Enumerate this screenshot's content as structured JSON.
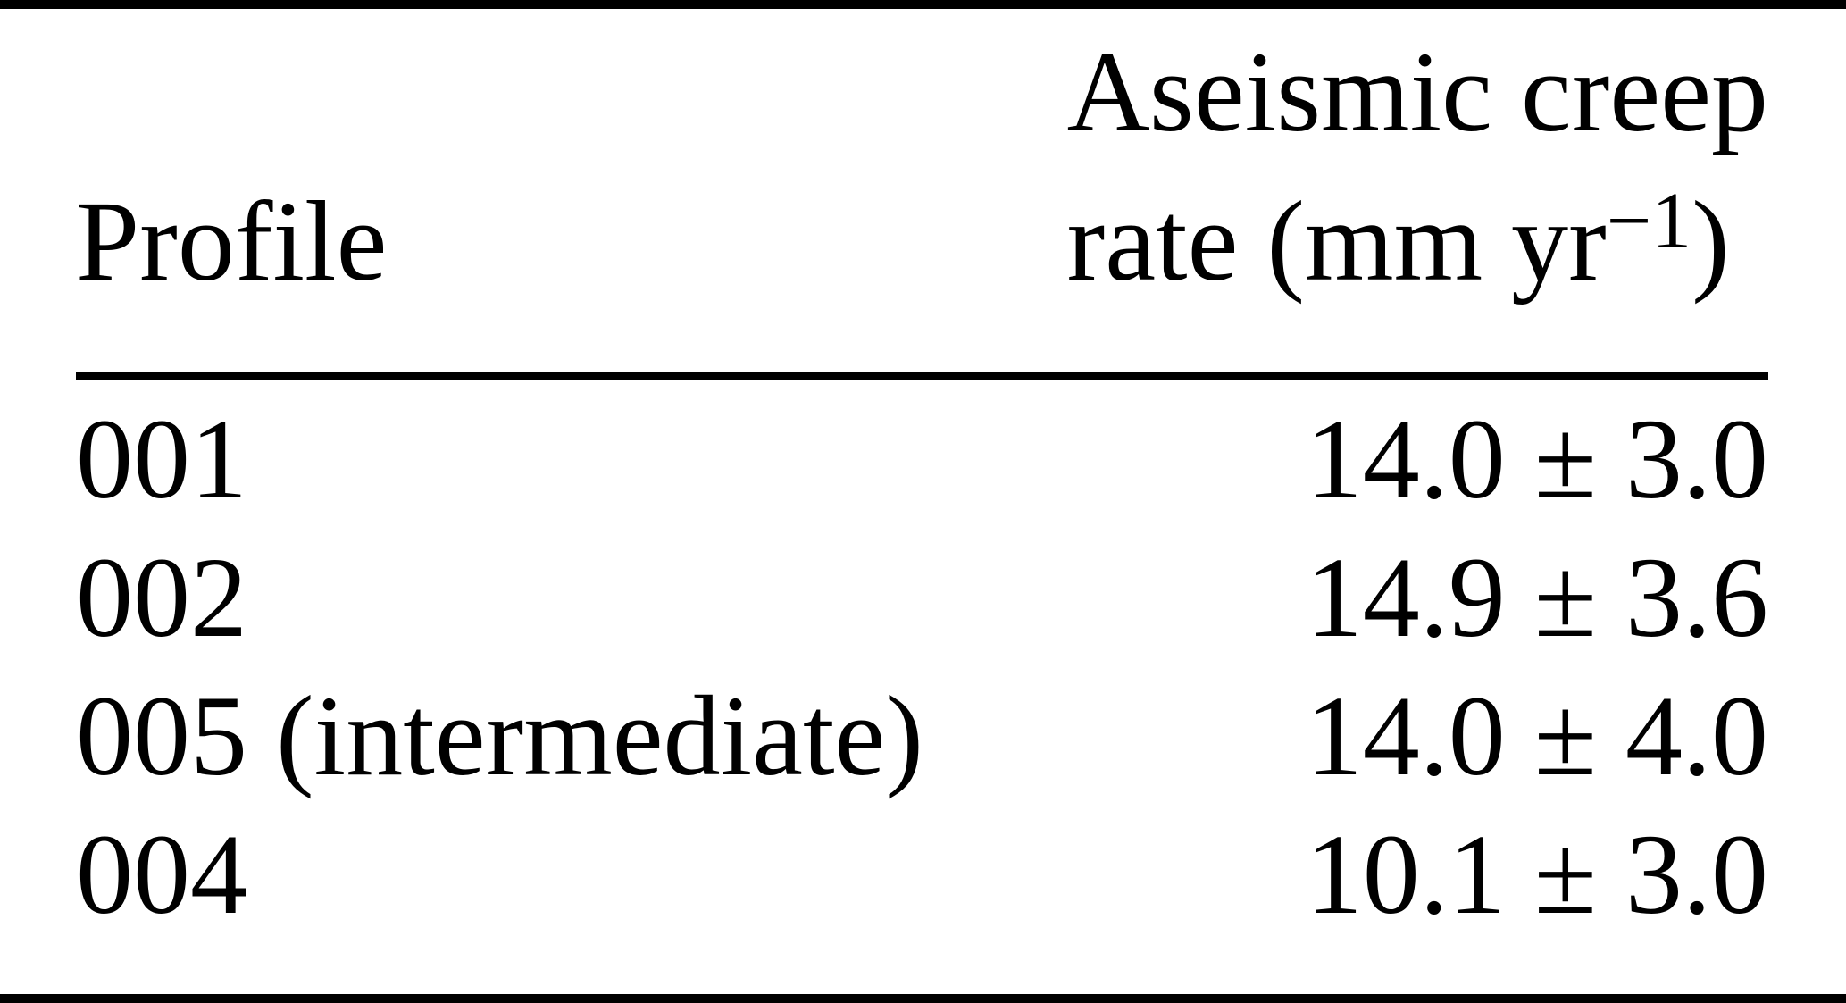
{
  "colors": {
    "text": "#000000",
    "rules": "#000000",
    "background": "#ffffff"
  },
  "table": {
    "columns": [
      {
        "label": "Profile"
      },
      {
        "label_line1": "Aseismic creep",
        "label_line2_prefix": "rate (mm yr",
        "label_line2_sup": "−1",
        "label_line2_suffix": ")"
      }
    ],
    "rows": [
      {
        "profile": "001",
        "rate": "14.0 ± 3.0"
      },
      {
        "profile": "002",
        "rate": "14.9 ± 3.6"
      },
      {
        "profile": "005 (intermediate)",
        "rate": "14.0 ± 4.0"
      },
      {
        "profile": "004",
        "rate": "10.1 ± 3.0"
      }
    ]
  }
}
